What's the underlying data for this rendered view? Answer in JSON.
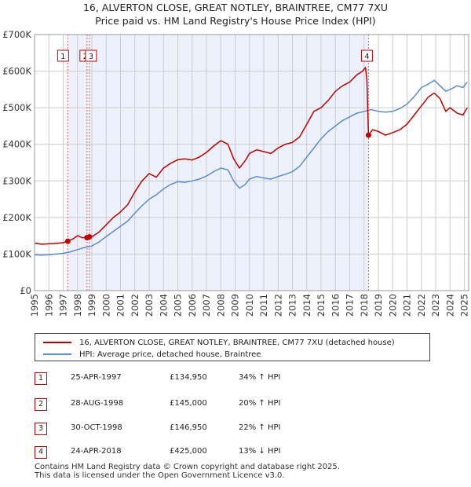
{
  "title_line1": "16, ALVERTON CLOSE, GREAT NOTLEY, BRAINTREE, CM77 7XU",
  "title_line2": "Price paid vs. HM Land Registry's House Price Index (HPI)",
  "colors": {
    "property": "#c00000",
    "hpi": "#5b8ccc",
    "plot_bg": "#edf1fb",
    "grid": "#cccccc",
    "marker": "#c00000",
    "dash": "#e06060"
  },
  "legend": {
    "property_label": "16, ALVERTON CLOSE, GREAT NOTLEY, BRAINTREE, CM77 7XU (detached house)",
    "hpi_label": "HPI: Average price, detached house, Braintree"
  },
  "sales": [
    {
      "num": "1",
      "date": "25-APR-1997",
      "price": "£134,950",
      "hpi": "34% ↑ HPI"
    },
    {
      "num": "2",
      "date": "28-AUG-1998",
      "price": "£145,000",
      "hpi": "20% ↑ HPI"
    },
    {
      "num": "3",
      "date": "30-OCT-1998",
      "price": "£146,950",
      "hpi": "22% ↑ HPI"
    },
    {
      "num": "4",
      "date": "24-APR-2018",
      "price": "£425,000",
      "hpi": "13% ↓ HPI"
    }
  ],
  "footer_line1": "Contains HM Land Registry data © Crown copyright and database right 2025.",
  "footer_line2": "This data is licensed under the Open Government Licence v3.0.",
  "chart_data": {
    "type": "line",
    "title": "16, ALVERTON CLOSE, GREAT NOTLEY, BRAINTREE, CM77 7XU – Price paid vs. HM Land Registry's House Price Index (HPI)",
    "xlabel": "",
    "ylabel": "",
    "xlim": [
      1995,
      2025.3
    ],
    "ylim": [
      0,
      700000
    ],
    "y_ticks": [
      0,
      100000,
      200000,
      300000,
      400000,
      500000,
      600000,
      700000
    ],
    "y_tick_labels": [
      "£0",
      "£100K",
      "£200K",
      "£300K",
      "£400K",
      "£500K",
      "£600K",
      "£700K"
    ],
    "x_ticks": [
      1995,
      1996,
      1997,
      1998,
      1999,
      2000,
      2001,
      2002,
      2003,
      2004,
      2005,
      2006,
      2007,
      2008,
      2009,
      2010,
      2011,
      2012,
      2013,
      2014,
      2015,
      2016,
      2017,
      2018,
      2019,
      2020,
      2021,
      2022,
      2023,
      2024,
      2025
    ],
    "x_tick_labels": [
      "1995",
      "1996",
      "1997",
      "1998",
      "1999",
      "2000",
      "2001",
      "2002",
      "2003",
      "2004",
      "2005",
      "2006",
      "2007",
      "2008",
      "2009",
      "2010",
      "2011",
      "2012",
      "2013",
      "2014",
      "2015",
      "2016",
      "2017",
      "2018",
      "2019",
      "2020",
      "2021",
      "2022",
      "2023",
      "2024",
      "2025"
    ],
    "grid": true,
    "series": [
      {
        "name": "16, ALVERTON CLOSE, GREAT NOTLEY, BRAINTREE, CM77 7XU (detached house)",
        "x": [
          1995.0,
          1995.5,
          1996.0,
          1996.5,
          1997.0,
          1997.32,
          1997.7,
          1998.0,
          1998.3,
          1998.66,
          1998.83,
          1999.0,
          1999.5,
          2000.0,
          2000.5,
          2001.0,
          2001.5,
          2002.0,
          2002.5,
          2003.0,
          2003.5,
          2004.0,
          2004.5,
          2005.0,
          2005.5,
          2006.0,
          2006.5,
          2007.0,
          2007.5,
          2008.0,
          2008.5,
          2008.9,
          2009.3,
          2009.7,
          2010.0,
          2010.5,
          2011.0,
          2011.5,
          2012.0,
          2012.5,
          2013.0,
          2013.5,
          2014.0,
          2014.5,
          2015.0,
          2015.5,
          2016.0,
          2016.5,
          2017.0,
          2017.5,
          2017.9,
          2018.1,
          2018.2,
          2018.31,
          2018.6,
          2019.0,
          2019.5,
          2020.0,
          2020.5,
          2021.0,
          2021.5,
          2022.0,
          2022.5,
          2022.9,
          2023.3,
          2023.7,
          2024.0,
          2024.5,
          2024.9,
          2025.2
        ],
        "y": [
          130000,
          127000,
          128000,
          129000,
          131000,
          134950,
          142000,
          150000,
          145000,
          145000,
          146950,
          147000,
          160000,
          180000,
          200000,
          215000,
          235000,
          270000,
          300000,
          320000,
          310000,
          335000,
          348000,
          358000,
          360000,
          357000,
          365000,
          378000,
          395000,
          410000,
          400000,
          360000,
          335000,
          355000,
          375000,
          385000,
          380000,
          375000,
          390000,
          400000,
          405000,
          420000,
          455000,
          490000,
          500000,
          520000,
          545000,
          560000,
          570000,
          590000,
          600000,
          610000,
          575000,
          425000,
          440000,
          435000,
          425000,
          432000,
          440000,
          455000,
          480000,
          505000,
          530000,
          540000,
          525000,
          490000,
          500000,
          485000,
          480000,
          500000
        ]
      },
      {
        "name": "HPI: Average price, detached house, Braintree",
        "x": [
          1995.0,
          1995.5,
          1996.0,
          1996.5,
          1997.0,
          1997.5,
          1998.0,
          1998.5,
          1999.0,
          1999.5,
          2000.0,
          2000.5,
          2001.0,
          2001.5,
          2002.0,
          2002.5,
          2003.0,
          2003.5,
          2004.0,
          2004.5,
          2005.0,
          2005.5,
          2006.0,
          2006.5,
          2007.0,
          2007.5,
          2008.0,
          2008.5,
          2008.9,
          2009.3,
          2009.7,
          2010.0,
          2010.5,
          2011.0,
          2011.5,
          2012.0,
          2012.5,
          2013.0,
          2013.5,
          2014.0,
          2014.5,
          2015.0,
          2015.5,
          2016.0,
          2016.5,
          2017.0,
          2017.5,
          2018.0,
          2018.5,
          2019.0,
          2019.5,
          2020.0,
          2020.5,
          2021.0,
          2021.5,
          2022.0,
          2022.5,
          2022.9,
          2023.3,
          2023.7,
          2024.0,
          2024.5,
          2024.9,
          2025.2
        ],
        "y": [
          98000,
          97000,
          98000,
          100000,
          102000,
          106000,
          112000,
          118000,
          122000,
          133000,
          148000,
          162000,
          176000,
          190000,
          212000,
          232000,
          250000,
          262000,
          278000,
          290000,
          298000,
          296000,
          300000,
          305000,
          313000,
          325000,
          335000,
          330000,
          300000,
          280000,
          290000,
          305000,
          312000,
          308000,
          305000,
          312000,
          318000,
          325000,
          340000,
          365000,
          390000,
          415000,
          435000,
          450000,
          465000,
          475000,
          485000,
          490000,
          495000,
          490000,
          488000,
          490000,
          498000,
          510000,
          530000,
          555000,
          565000,
          575000,
          560000,
          545000,
          550000,
          560000,
          555000,
          570000
        ]
      }
    ],
    "annotations": [
      {
        "label": "1",
        "x": 1997.32,
        "y": 134950
      },
      {
        "label": "2",
        "x": 1998.66,
        "y": 145000
      },
      {
        "label": "3",
        "x": 1998.83,
        "y": 146950
      },
      {
        "label": "4",
        "x": 2018.31,
        "y": 425000
      }
    ],
    "shaded_ranges": [
      [
        1997.32,
        2018.31
      ]
    ]
  }
}
